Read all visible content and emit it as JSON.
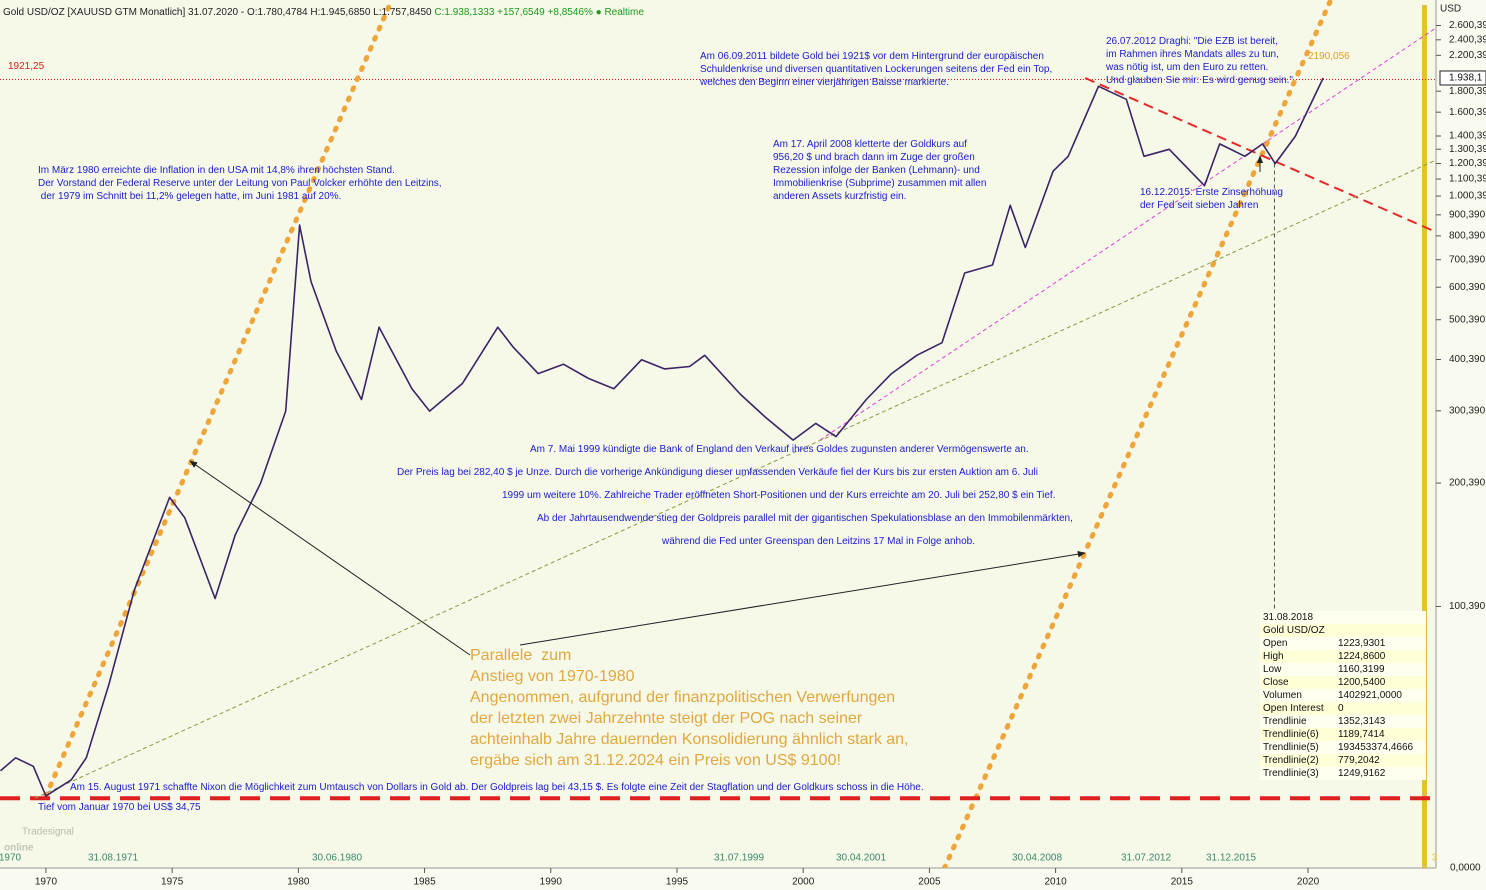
{
  "chart_data": {
    "type": "line",
    "title": "Gold USD/OZ [XAUUSD GTM Monatlich] 31.07.2020 - O:1.780,4784 H:1.945,6850 L:1.757,8450",
    "subtitle": "C:1.938,1333 +157,6549 +8,8546%",
    "status": "Realtime",
    "y_unit": "USD",
    "log_y": true,
    "color": "#3a2468",
    "x": [
      1968.2,
      1968.8,
      1969.5,
      1970.0,
      1971.0,
      1971.6,
      1972.5,
      1973.5,
      1974.9,
      1975.5,
      1976.7,
      1977.5,
      1978.5,
      1979.5,
      1980.05,
      1980.5,
      1981.5,
      1982.5,
      1983.2,
      1984.5,
      1985.2,
      1986.5,
      1987.9,
      1988.5,
      1989.5,
      1990.5,
      1991.5,
      1992.5,
      1993.6,
      1994.5,
      1995.5,
      1996.1,
      1997.5,
      1998.5,
      1999.6,
      2000.5,
      2001.3,
      2002.5,
      2003.5,
      2004.5,
      2005.5,
      2006.4,
      2007.5,
      2008.2,
      2008.8,
      2009.9,
      2010.5,
      2011.7,
      2012.8,
      2013.5,
      2014.5,
      2015.9,
      2016.5,
      2017.5,
      2018.2,
      2018.7,
      2019.5,
      2020.6
    ],
    "values": [
      40,
      43,
      41,
      34.75,
      38,
      43,
      65,
      110,
      185,
      165,
      105,
      150,
      200,
      300,
      850,
      620,
      420,
      320,
      480,
      340,
      300,
      350,
      480,
      430,
      370,
      390,
      360,
      340,
      400,
      380,
      385,
      410,
      330,
      290,
      255,
      280,
      260,
      320,
      370,
      410,
      440,
      650,
      680,
      950,
      750,
      1150,
      1250,
      1850,
      1720,
      1250,
      1300,
      1060,
      1340,
      1250,
      1340,
      1200,
      1400,
      1938.13
    ],
    "xlim": [
      1968.18,
      2025.07
    ],
    "xticks": [
      1970,
      1975,
      1980,
      1985,
      1990,
      1995,
      2000,
      2005,
      2010,
      2015,
      2020
    ],
    "ylim": [
      23.2,
      3000
    ],
    "yticks": [
      {
        "value": 2600.39,
        "label": "2.600,390"
      },
      {
        "value": 2400.39,
        "label": "2.400,390"
      },
      {
        "value": 2200.39,
        "label": "2.200,390"
      },
      {
        "value": 1800.39,
        "label": "1.800,390"
      },
      {
        "value": 1600.39,
        "label": "1.600,390"
      },
      {
        "value": 1400.39,
        "label": "1.400,390"
      },
      {
        "value": 1300.39,
        "label": "1.300,390"
      },
      {
        "value": 1200.39,
        "label": "1.200,390"
      },
      {
        "value": 1100.39,
        "label": "1.100,390"
      },
      {
        "value": 1000.39,
        "label": "1.000,390"
      },
      {
        "value": 900.39,
        "label": "900,390"
      },
      {
        "value": 800.39,
        "label": "800,390"
      },
      {
        "value": 700.39,
        "label": "700,390"
      },
      {
        "value": 600.39,
        "label": "600,390"
      },
      {
        "value": 500.39,
        "label": "500,390"
      },
      {
        "value": 400.39,
        "label": "400,390"
      },
      {
        "value": 300.39,
        "label": "300,390"
      },
      {
        "value": 200.39,
        "label": "200,390"
      },
      {
        "value": 100.39,
        "label": "100,390"
      }
    ],
    "y_bottom_label": "0,0000",
    "last_price": {
      "value": 1938.13,
      "label": "1.938,1"
    },
    "ref_line": {
      "value": 1921.25,
      "label": "1921,25",
      "color": "#d42020"
    },
    "target": {
      "value": 2190.056,
      "label": "2190,056",
      "color": "#e0a030"
    },
    "trendlines": [
      {
        "style": "dotted",
        "color": "#eea53a",
        "x": [
          1970.0,
          1983.7
        ],
        "y": [
          34.75,
          3000
        ]
      },
      {
        "style": "dotted",
        "color": "#eea53a",
        "x": [
          2005.6,
          2020.9
        ],
        "y": [
          23.2,
          3000
        ]
      },
      {
        "style": "dashed-thick",
        "color": "#e02020",
        "x": [
          1968.18,
          2025.07
        ],
        "y": [
          34.3,
          34.3
        ]
      },
      {
        "style": "dashed",
        "color": "#e82828",
        "x": [
          2011.17,
          2025.07
        ],
        "y": [
          1938,
          818
        ]
      },
      {
        "style": "fine",
        "color": "#e040e0",
        "x": [
          2000.67,
          2025.07
        ],
        "y": [
          255,
          2566
        ]
      },
      {
        "style": "fine",
        "color": "#8a9a40",
        "x": [
          1969.56,
          2025.07
        ],
        "y": [
          34.3,
          1224
        ]
      },
      {
        "style": "fine",
        "color": "#555555",
        "x": [
          2018.67,
          2018.67
        ],
        "y": [
          1200.54,
          98
        ]
      }
    ],
    "date_markers": [
      "1970",
      "31.08.1971",
      "30.06.1980",
      "31.07.1999",
      "30.04.2001",
      "30.04.2008",
      "31.07.2012",
      "31.12.2015"
    ],
    "corner_label": "3",
    "annotations": [
      {
        "lines": [
          "Im März 1980 erreichte die Inflation in den USA mit 14,8% ihren höchsten Stand.",
          "Der Vorstand der Federal Reserve unter der Leitung von Paul Volcker erhöhte den Leitzins,",
          " der 1979 im Schnitt bei 11,2% gelegen hatte, im Juni 1981 auf 20%."
        ]
      },
      {
        "lines": [
          "Am 06.09.2011 bildete Gold bei 1921$ vor dem Hintergrund der europäischen",
          "Schuldenkrise und diversen quantitativen Lockerungen seitens der Fed ein Top,",
          "welches den Beginn einer vierjährigen Baisse markierte."
        ]
      },
      {
        "lines": [
          "26.07.2012 Draghi: \"Die EZB ist bereit,",
          "im Rahmen ihres Mandats alles zu tun,",
          "was nötig ist, um den Euro zu retten.",
          "Und glauben Sie mir: Es wird genug sein.\""
        ]
      },
      {
        "lines": [
          "Am 17. April 2008 kletterte der Goldkurs auf",
          "956,20 $ und brach dann im Zuge der großen",
          "Rezession infolge der Banken (Lehmann)- und",
          "Immobilienkrise (Subprime) zusammen mit allen",
          "anderen Assets kurzfristig ein."
        ]
      },
      {
        "lines": [
          "16.12.2015: Erste Zinserhöhung",
          "der Fed seit sieben Jahren"
        ]
      },
      {
        "lines": [
          "Am 7. Mai 1999 kündigte die Bank of England den Verkauf ihres Goldes zugunsten anderer Vermögenswerte an.",
          "Der Preis lag bei 282,40 $ je Unze. Durch die vorherige Ankündigung dieser umfassenden Verkäufe fiel der Kurs bis zur ersten Auktion am 6. Juli",
          "1999 um weitere 10%. Zahlreiche Trader eröffneten Short-Positionen und der Kurs erreichte am 20. Juli bei 252,80 $ ein Tief.",
          "Ab der Jahrtausendwende stieg der Goldpreis parallel mit der gigantischen Spekulationsblase an den Immobilenmärkten,",
          "während die Fed unter Greenspan den Leitzins 17 Mal in Folge anhob."
        ]
      },
      {
        "lines": [
          "Am 15. August 1971 schaffte Nixon die Möglichkeit zum Umtausch von Dollars in Gold ab. Der Goldpreis lag bei 43,15 $. Es folgte eine Zeit der Stagflation und der Goldkurs schoss in die Höhe."
        ]
      },
      {
        "lines": [
          "Tief vom Januar 1970 bei US$ 34,75"
        ]
      },
      {
        "lines": [
          "Parallele  zum",
          "Anstieg von 1970-1980",
          "Angenommen, aufgrund der finanzpolitischen Verwerfungen",
          "der letzten zwei Jahrzehnte steigt der POG nach seiner",
          "achteinhalb Jahre dauernden Konsolidierung ähnlich stark an,",
          "ergäbe sich am 31.12.2024 ein Preis von US$ 9100!"
        ]
      }
    ],
    "info_box": {
      "date": "31.08.2018",
      "title": "Gold USD/OZ",
      "rows": [
        [
          "Open",
          "1223,9301"
        ],
        [
          "High",
          "1224,8600"
        ],
        [
          "Low",
          "1160,3199"
        ],
        [
          "Close",
          "1200,5400"
        ],
        [
          "Volumen",
          "1402921,0000"
        ],
        [
          "Open Interest",
          "0"
        ],
        [
          "Trendlinie",
          "1352,3143"
        ],
        [
          "Trendlinie(6)",
          "1189,7414"
        ],
        [
          "Trendlinie(5)",
          "193453374,4666"
        ],
        [
          "Trendlinie(2)",
          "779,2042"
        ],
        [
          "Trendlinie(3)",
          "1249,9162"
        ]
      ]
    },
    "logo": [
      "Tradesignal",
      "online"
    ]
  }
}
